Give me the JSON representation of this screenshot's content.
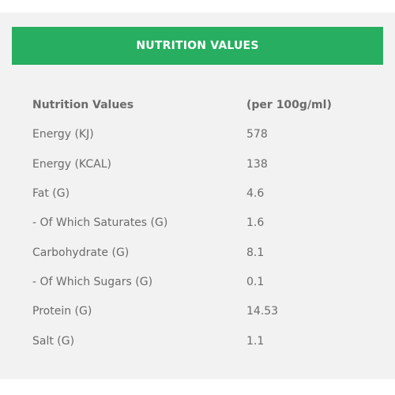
{
  "header": {
    "title": "NUTRITION VALUES"
  },
  "table": {
    "columns": [
      "Nutrition Values",
      "(per 100g/ml)"
    ],
    "rows": [
      {
        "label": "Energy (KJ)",
        "value": "578"
      },
      {
        "label": "Energy (KCAL)",
        "value": "138"
      },
      {
        "label": "Fat (G)",
        "value": "4.6"
      },
      {
        "label": "- Of Which Saturates (G)",
        "value": "1.6"
      },
      {
        "label": "Carbohydrate (G)",
        "value": "8.1"
      },
      {
        "label": "- Of Which Sugars (G)",
        "value": "0.1"
      },
      {
        "label": "Protein (G)",
        "value": "14.53"
      },
      {
        "label": "Salt (G)",
        "value": "1.1"
      }
    ]
  },
  "colors": {
    "accent": "#27ae60",
    "panel_bg": "#f2f2f2",
    "text": "#6b6b6b"
  }
}
